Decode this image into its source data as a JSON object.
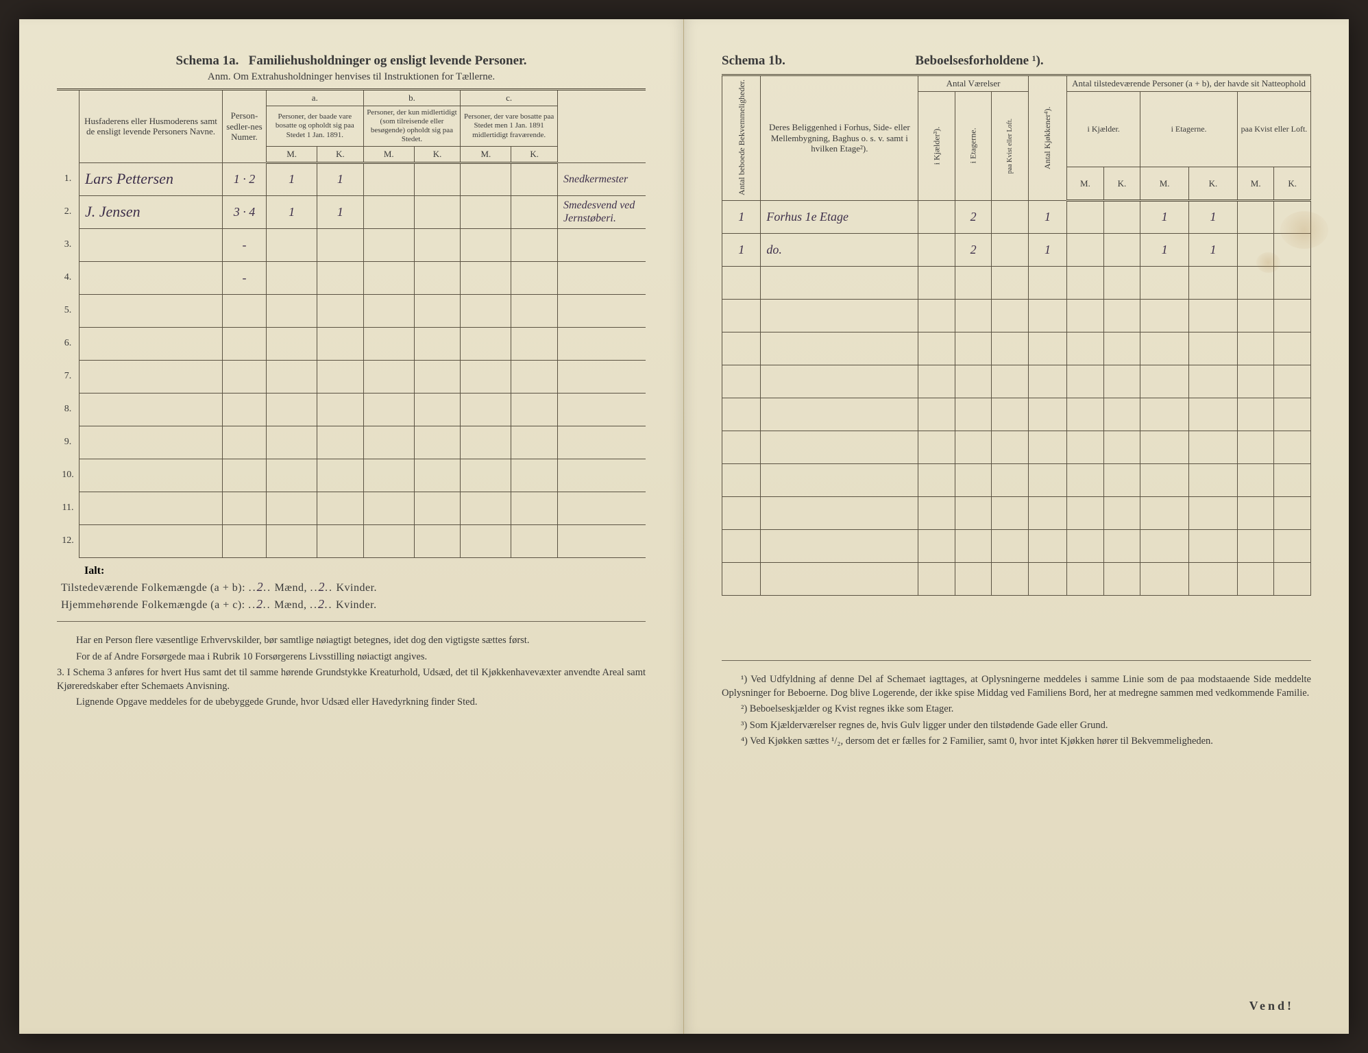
{
  "left": {
    "schema_label": "Schema 1a.",
    "schema_title": "Familiehusholdninger og ensligt levende Personer.",
    "anm": "Anm. Om Extrahusholdninger henvises til Instruktionen for Tællerne.",
    "col_name": "Husfaderens eller Husmoderens samt de ensligt levende Personers Navne.",
    "col_num": "Person-sedler-nes Numer.",
    "col_a_label": "a.",
    "col_a": "Personer, der baade vare bosatte og opholdt sig paa Stedet 1 Jan. 1891.",
    "col_b_label": "b.",
    "col_b": "Personer, der kun midlertidigt (som tilreisende eller besøgende) opholdt sig paa Stedet.",
    "col_c_label": "c.",
    "col_c": "Personer, der vare bosatte paa Stedet men 1 Jan. 1891 midlertidigt fraværende.",
    "mk_m": "M.",
    "mk_k": "K.",
    "rows": [
      {
        "n": "1.",
        "name": "Lars Pettersen",
        "num": "1 · 2",
        "am": "1",
        "ak": "1",
        "bm": "",
        "bk": "",
        "cm": "",
        "ck": "",
        "note": "Snedkermester"
      },
      {
        "n": "2.",
        "name": "J. Jensen",
        "num": "3 · 4",
        "am": "1",
        "ak": "1",
        "bm": "",
        "bk": "",
        "cm": "",
        "ck": "",
        "note": "Smedesvend ved Jernstøberi."
      },
      {
        "n": "3.",
        "name": "",
        "num": "-",
        "am": "",
        "ak": "",
        "bm": "",
        "bk": "",
        "cm": "",
        "ck": "",
        "note": ""
      },
      {
        "n": "4.",
        "name": "",
        "num": "-",
        "am": "",
        "ak": "",
        "bm": "",
        "bk": "",
        "cm": "",
        "ck": "",
        "note": ""
      },
      {
        "n": "5.",
        "name": "",
        "num": "",
        "am": "",
        "ak": "",
        "bm": "",
        "bk": "",
        "cm": "",
        "ck": "",
        "note": ""
      },
      {
        "n": "6.",
        "name": "",
        "num": "",
        "am": "",
        "ak": "",
        "bm": "",
        "bk": "",
        "cm": "",
        "ck": "",
        "note": ""
      },
      {
        "n": "7.",
        "name": "",
        "num": "",
        "am": "",
        "ak": "",
        "bm": "",
        "bk": "",
        "cm": "",
        "ck": "",
        "note": ""
      },
      {
        "n": "8.",
        "name": "",
        "num": "",
        "am": "",
        "ak": "",
        "bm": "",
        "bk": "",
        "cm": "",
        "ck": "",
        "note": ""
      },
      {
        "n": "9.",
        "name": "",
        "num": "",
        "am": "",
        "ak": "",
        "bm": "",
        "bk": "",
        "cm": "",
        "ck": "",
        "note": ""
      },
      {
        "n": "10.",
        "name": "",
        "num": "",
        "am": "",
        "ak": "",
        "bm": "",
        "bk": "",
        "cm": "",
        "ck": "",
        "note": ""
      },
      {
        "n": "11.",
        "name": "",
        "num": "",
        "am": "",
        "ak": "",
        "bm": "",
        "bk": "",
        "cm": "",
        "ck": "",
        "note": ""
      },
      {
        "n": "12.",
        "name": "",
        "num": "",
        "am": "",
        "ak": "",
        "bm": "",
        "bk": "",
        "cm": "",
        "ck": "",
        "note": ""
      }
    ],
    "ialt": "Ialt:",
    "sum1_label": "Tilstedeværende Folkemængde (a + b):",
    "sum1_m": "2",
    "sum1_m_lbl": "Mænd,",
    "sum1_k": "2",
    "sum1_k_lbl": "Kvinder.",
    "sum2_label": "Hjemmehørende Folkemængde (a + c):",
    "sum2_m": "2",
    "sum2_m_lbl": "Mænd,",
    "sum2_k": "2",
    "sum2_k_lbl": "Kvinder.",
    "note1": "Har en Person flere væsentlige Erhvervskilder, bør samtlige nøiagtigt betegnes, idet dog den vigtigste sættes først.",
    "note2": "For de af Andre Forsørgede maa i Rubrik 10 Forsørgerens Livsstilling nøiactigt angives.",
    "note3_label": "3.",
    "note3": "I Schema 3 anføres for hvert Hus samt det til samme hørende Grundstykke Kreaturhold, Udsæd, det til Kjøkkenhavevæxter anvendte Areal samt Kjøreredskaber efter Schemaets Anvisning.",
    "note4": "Lignende Opgave meddeles for de ubebyggede Grunde, hvor Udsæd eller Havedyrkning finder Sted."
  },
  "right": {
    "schema_label": "Schema 1b.",
    "schema_title": "Beboelsesforholdene ¹).",
    "col_antal_bekvem": "Antal beboede Bekvemmeligheder.",
    "col_beligg": "Deres Beliggenhed i Forhus, Side- eller Mellembygning, Baghus o. s. v. samt i hvilken Etage²).",
    "col_vaer": "Antal Værelser",
    "col_vaer_k": "i Kjælder³).",
    "col_vaer_e": "i Etagerne.",
    "col_vaer_l": "paa Kvist eller Loft.",
    "col_kjok": "Antal Kjøkkener⁴).",
    "col_pers": "Antal tilstedeværende Personer (a + b), der havde sit Natteophold",
    "col_pers_k": "i Kjælder.",
    "col_pers_e": "i Etagerne.",
    "col_pers_l": "paa Kvist eller Loft.",
    "mk_m": "M.",
    "mk_k": "K.",
    "rows": [
      {
        "bek": "1",
        "bel": "Forhus 1e Etage",
        "vk": "",
        "ve": "2",
        "vl": "",
        "kj": "1",
        "pkm": "",
        "pkk": "",
        "pem": "1",
        "pek": "1",
        "plm": "",
        "plk": ""
      },
      {
        "bek": "1",
        "bel": "do.",
        "vk": "",
        "ve": "2",
        "vl": "",
        "kj": "1",
        "pkm": "",
        "pkk": "",
        "pem": "1",
        "pek": "1",
        "plm": "",
        "plk": ""
      },
      {
        "bek": "",
        "bel": "",
        "vk": "",
        "ve": "",
        "vl": "",
        "kj": "",
        "pkm": "",
        "pkk": "",
        "pem": "",
        "pek": "",
        "plm": "",
        "plk": ""
      },
      {
        "bek": "",
        "bel": "",
        "vk": "",
        "ve": "",
        "vl": "",
        "kj": "",
        "pkm": "",
        "pkk": "",
        "pem": "",
        "pek": "",
        "plm": "",
        "plk": ""
      },
      {
        "bek": "",
        "bel": "",
        "vk": "",
        "ve": "",
        "vl": "",
        "kj": "",
        "pkm": "",
        "pkk": "",
        "pem": "",
        "pek": "",
        "plm": "",
        "plk": ""
      },
      {
        "bek": "",
        "bel": "",
        "vk": "",
        "ve": "",
        "vl": "",
        "kj": "",
        "pkm": "",
        "pkk": "",
        "pem": "",
        "pek": "",
        "plm": "",
        "plk": ""
      },
      {
        "bek": "",
        "bel": "",
        "vk": "",
        "ve": "",
        "vl": "",
        "kj": "",
        "pkm": "",
        "pkk": "",
        "pem": "",
        "pek": "",
        "plm": "",
        "plk": ""
      },
      {
        "bek": "",
        "bel": "",
        "vk": "",
        "ve": "",
        "vl": "",
        "kj": "",
        "pkm": "",
        "pkk": "",
        "pem": "",
        "pek": "",
        "plm": "",
        "plk": ""
      },
      {
        "bek": "",
        "bel": "",
        "vk": "",
        "ve": "",
        "vl": "",
        "kj": "",
        "pkm": "",
        "pkk": "",
        "pem": "",
        "pek": "",
        "plm": "",
        "plk": ""
      },
      {
        "bek": "",
        "bel": "",
        "vk": "",
        "ve": "",
        "vl": "",
        "kj": "",
        "pkm": "",
        "pkk": "",
        "pem": "",
        "pek": "",
        "plm": "",
        "plk": ""
      },
      {
        "bek": "",
        "bel": "",
        "vk": "",
        "ve": "",
        "vl": "",
        "kj": "",
        "pkm": "",
        "pkk": "",
        "pem": "",
        "pek": "",
        "plm": "",
        "plk": ""
      },
      {
        "bek": "",
        "bel": "",
        "vk": "",
        "ve": "",
        "vl": "",
        "kj": "",
        "pkm": "",
        "pkk": "",
        "pem": "",
        "pek": "",
        "plm": "",
        "plk": ""
      }
    ],
    "fn1": "¹) Ved Udfyldning af denne Del af Schemaet iagttages, at Oplysningerne meddeles i samme Linie som de paa modstaaende Side meddelte Oplysninger for Beboerne. Dog blive Logerende, der ikke spise Middag ved Familiens Bord, her at medregne sammen med vedkommende Familie.",
    "fn2": "²) Beboelseskjælder og Kvist regnes ikke som Etager.",
    "fn3": "³) Som Kjælderværelser regnes de, hvis Gulv ligger under den tilstødende Gade eller Grund.",
    "fn4": "⁴) Ved Kjøkken sættes ¹/₂, dersom det er fælles for 2 Familier, samt 0, hvor intet Kjøkken hører til Bekvemmeligheden.",
    "vend": "Vend!"
  }
}
